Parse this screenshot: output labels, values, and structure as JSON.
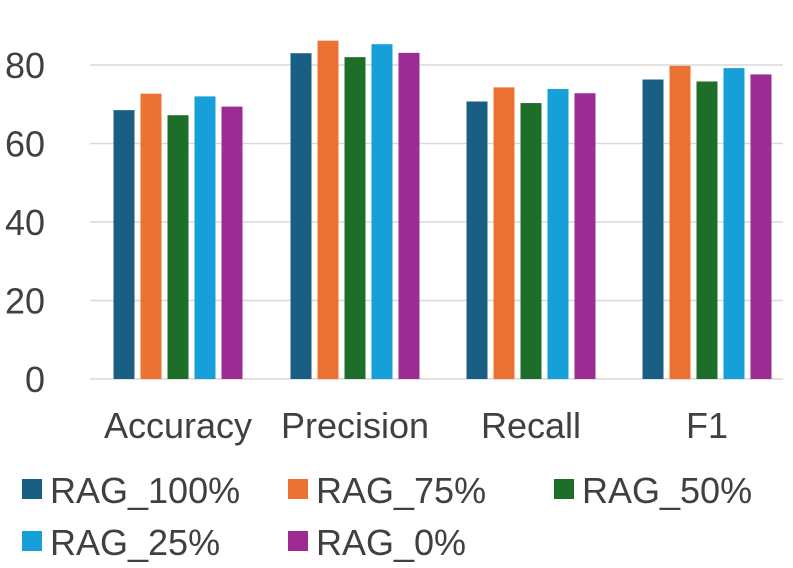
{
  "chart_data": {
    "type": "bar",
    "title": "",
    "xlabel": "",
    "ylabel": "",
    "categories": [
      "Accuracy",
      "Precision",
      "Recall",
      "F1"
    ],
    "series": [
      {
        "name": "RAG_100%",
        "color": "#1a5e84",
        "values": [
          68.5,
          83.0,
          70.7,
          76.3
        ]
      },
      {
        "name": "RAG_75%",
        "color": "#eb7232",
        "values": [
          72.7,
          86.2,
          74.3,
          79.8
        ]
      },
      {
        "name": "RAG_50%",
        "color": "#1c6e28",
        "values": [
          67.2,
          82.0,
          70.3,
          75.8
        ]
      },
      {
        "name": "RAG_25%",
        "color": "#169fd9",
        "values": [
          72.0,
          85.3,
          73.9,
          79.2
        ]
      },
      {
        "name": "RAG_0%",
        "color": "#9c2b94",
        "values": [
          69.4,
          83.1,
          72.8,
          77.6
        ]
      }
    ],
    "yticks": [
      "0",
      "20",
      "40",
      "60",
      "80"
    ],
    "ylim": [
      0,
      90
    ],
    "grid": true,
    "legend_position": "bottom"
  }
}
